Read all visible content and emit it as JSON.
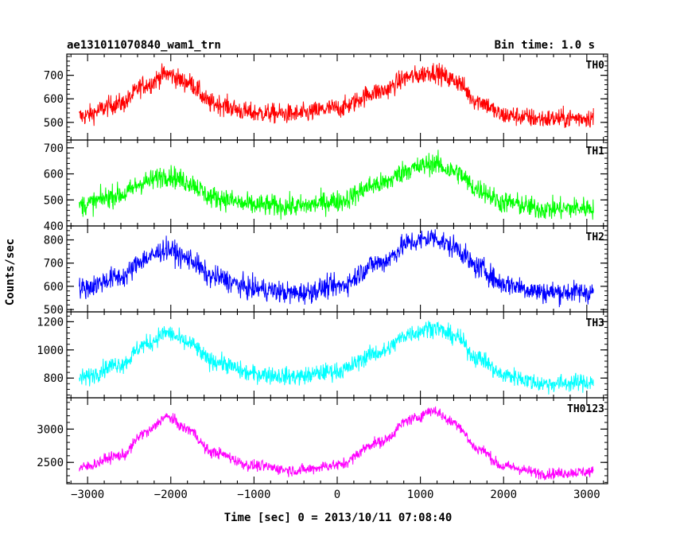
{
  "chart_data": {
    "type": "line",
    "title": "ae131011070840_wam1_trn",
    "bin_time": "Bin time: 1.0 s",
    "xlabel": "Time [sec] 0 = 2013/10/11 07:08:40",
    "ylabel": "Counts/sec",
    "xlim": [
      -3250,
      3250
    ],
    "x_ticks": [
      -3000,
      -2000,
      -1000,
      0,
      1000,
      2000,
      3000
    ],
    "x_tick_labels": [
      "−3000",
      "−2000",
      "−1000",
      "0",
      "1000",
      "2000",
      "3000"
    ],
    "data_x_range": [
      -3100,
      3080
    ],
    "panels": [
      {
        "name": "TH0",
        "color": "#ff0000",
        "ylim": [
          425,
          790
        ],
        "y_ticks": [
          500,
          600,
          700
        ],
        "y_tick_labels": [
          "500",
          "600",
          "700"
        ],
        "profile": [
          [
            -3100,
            525
          ],
          [
            -2600,
            580
          ],
          [
            -2300,
            660
          ],
          [
            -2050,
            705
          ],
          [
            -1800,
            670
          ],
          [
            -1500,
            580
          ],
          [
            -1000,
            540
          ],
          [
            -500,
            535
          ],
          [
            0,
            560
          ],
          [
            500,
            630
          ],
          [
            900,
            695
          ],
          [
            1150,
            715
          ],
          [
            1400,
            680
          ],
          [
            1700,
            590
          ],
          [
            2000,
            530
          ],
          [
            2500,
            515
          ],
          [
            3080,
            520
          ]
        ],
        "noise": 40
      },
      {
        "name": "TH1",
        "color": "#00ff00",
        "ylim": [
          400,
          730
        ],
        "y_ticks": [
          400,
          500,
          600,
          700
        ],
        "y_tick_labels": [
          "400",
          "500",
          "600",
          "700"
        ],
        "profile": [
          [
            -3100,
            480
          ],
          [
            -2600,
            520
          ],
          [
            -2300,
            570
          ],
          [
            -2050,
            595
          ],
          [
            -1800,
            570
          ],
          [
            -1500,
            510
          ],
          [
            -1000,
            480
          ],
          [
            -500,
            475
          ],
          [
            0,
            495
          ],
          [
            500,
            560
          ],
          [
            900,
            620
          ],
          [
            1150,
            640
          ],
          [
            1400,
            610
          ],
          [
            1700,
            540
          ],
          [
            2000,
            490
          ],
          [
            2500,
            465
          ],
          [
            3080,
            470
          ]
        ],
        "noise": 40
      },
      {
        "name": "TH2",
        "color": "#0000ff",
        "ylim": [
          490,
          860
        ],
        "y_ticks": [
          500,
          600,
          700,
          800
        ],
        "y_tick_labels": [
          "500",
          "600",
          "700",
          "800"
        ],
        "profile": [
          [
            -3100,
            590
          ],
          [
            -2600,
            640
          ],
          [
            -2300,
            720
          ],
          [
            -2050,
            760
          ],
          [
            -1800,
            720
          ],
          [
            -1500,
            640
          ],
          [
            -1000,
            590
          ],
          [
            -500,
            570
          ],
          [
            0,
            600
          ],
          [
            500,
            700
          ],
          [
            900,
            790
          ],
          [
            1150,
            810
          ],
          [
            1400,
            770
          ],
          [
            1700,
            680
          ],
          [
            2000,
            610
          ],
          [
            2500,
            575
          ],
          [
            3080,
            575
          ]
        ],
        "noise": 45
      },
      {
        "name": "TH3",
        "color": "#00ffff",
        "ylim": [
          660,
          1270
        ],
        "y_ticks": [
          800,
          1000,
          1200
        ],
        "y_tick_labels": [
          "800",
          "1000",
          "1200"
        ],
        "profile": [
          [
            -3100,
            800
          ],
          [
            -2600,
            900
          ],
          [
            -2300,
            1040
          ],
          [
            -2050,
            1120
          ],
          [
            -1800,
            1050
          ],
          [
            -1500,
            920
          ],
          [
            -1000,
            830
          ],
          [
            -500,
            810
          ],
          [
            0,
            850
          ],
          [
            500,
            980
          ],
          [
            900,
            1120
          ],
          [
            1150,
            1160
          ],
          [
            1400,
            1100
          ],
          [
            1700,
            940
          ],
          [
            2000,
            820
          ],
          [
            2500,
            760
          ],
          [
            3080,
            770
          ]
        ],
        "noise": 60
      },
      {
        "name": "TH0123",
        "color": "#ff00ff",
        "ylim": [
          2180,
          3470
        ],
        "y_ticks": [
          2500,
          3000
        ],
        "y_tick_labels": [
          "2500",
          "3000"
        ],
        "profile": [
          [
            -3100,
            2420
          ],
          [
            -2600,
            2600
          ],
          [
            -2300,
            2950
          ],
          [
            -2050,
            3180
          ],
          [
            -1800,
            3000
          ],
          [
            -1500,
            2650
          ],
          [
            -1000,
            2450
          ],
          [
            -500,
            2380
          ],
          [
            0,
            2460
          ],
          [
            500,
            2800
          ],
          [
            900,
            3150
          ],
          [
            1150,
            3280
          ],
          [
            1400,
            3100
          ],
          [
            1700,
            2700
          ],
          [
            2000,
            2440
          ],
          [
            2500,
            2330
          ],
          [
            3080,
            2360
          ]
        ],
        "noise": 80
      }
    ]
  }
}
